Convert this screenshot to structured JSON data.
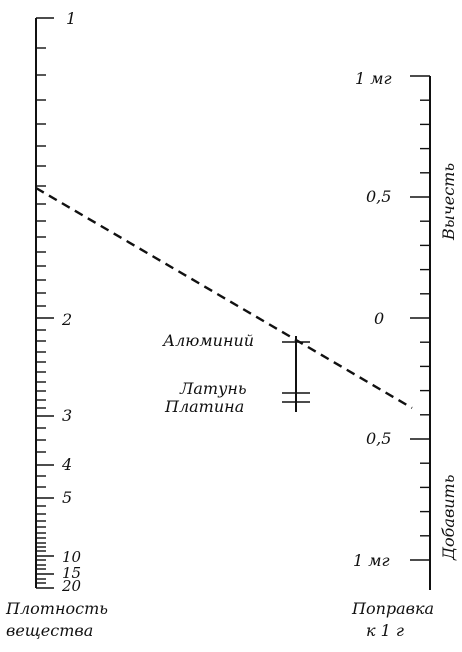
{
  "left_scale": {
    "labels": {
      "v1": "1",
      "v2": "2",
      "v3": "3",
      "v4": "4",
      "v5": "5",
      "v10": "10",
      "v15": "15",
      "v20": "20"
    },
    "caption_line1": "Плотность",
    "caption_line2": "вещества"
  },
  "right_scale": {
    "labels": {
      "top_1mg": "1 мг",
      "upper_05": "0,5",
      "zero": "0",
      "lower_05": "0,5",
      "bottom_1mg": "1 мг"
    },
    "side_upper": "Вычесть",
    "side_lower": "Добавить",
    "caption_line1": "Поправка",
    "caption_line2": "к 1 г"
  },
  "middle_scale": {
    "aluminium": "Алюминий",
    "brass": "Латунь",
    "platinum": "Платина"
  }
}
